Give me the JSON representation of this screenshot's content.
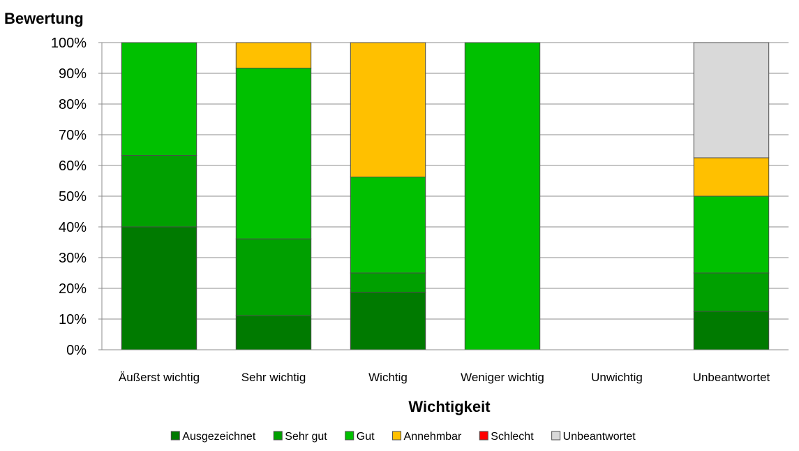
{
  "chart_data": {
    "type": "bar",
    "stacked": true,
    "ylabel": "Bewertung",
    "xlabel": "Wichtigkeit",
    "ylim": [
      0,
      100
    ],
    "y_ticks": [
      "0%",
      "10%",
      "20%",
      "30%",
      "40%",
      "50%",
      "60%",
      "70%",
      "80%",
      "90%",
      "100%"
    ],
    "grid": true,
    "legend_position": "bottom",
    "categories": [
      "Äußerst wichtig",
      "Sehr wichtig",
      "Wichtig",
      "Weniger wichtig",
      "Unwichtig",
      "Unbeantwortet"
    ],
    "series": [
      {
        "name": "Ausgezeichnet",
        "color": "#007a00",
        "values": [
          40,
          11.1,
          18.75,
          0,
          0,
          12.5
        ]
      },
      {
        "name": "Sehr gut",
        "color": "#00a000",
        "values": [
          23.3,
          25,
          6.25,
          0,
          0,
          12.5
        ]
      },
      {
        "name": "Gut",
        "color": "#00c000",
        "values": [
          36.7,
          55.6,
          31.25,
          100,
          0,
          25
        ]
      },
      {
        "name": "Annehmbar",
        "color": "#ffc000",
        "values": [
          0,
          8.3,
          43.75,
          0,
          0,
          12.5
        ]
      },
      {
        "name": "Schlecht",
        "color": "#ff0000",
        "values": [
          0,
          0,
          0,
          0,
          0,
          0
        ]
      },
      {
        "name": "Unbeantwortet",
        "color": "#d9d9d9",
        "values": [
          0,
          0,
          0,
          0,
          0,
          37.5
        ]
      }
    ]
  }
}
